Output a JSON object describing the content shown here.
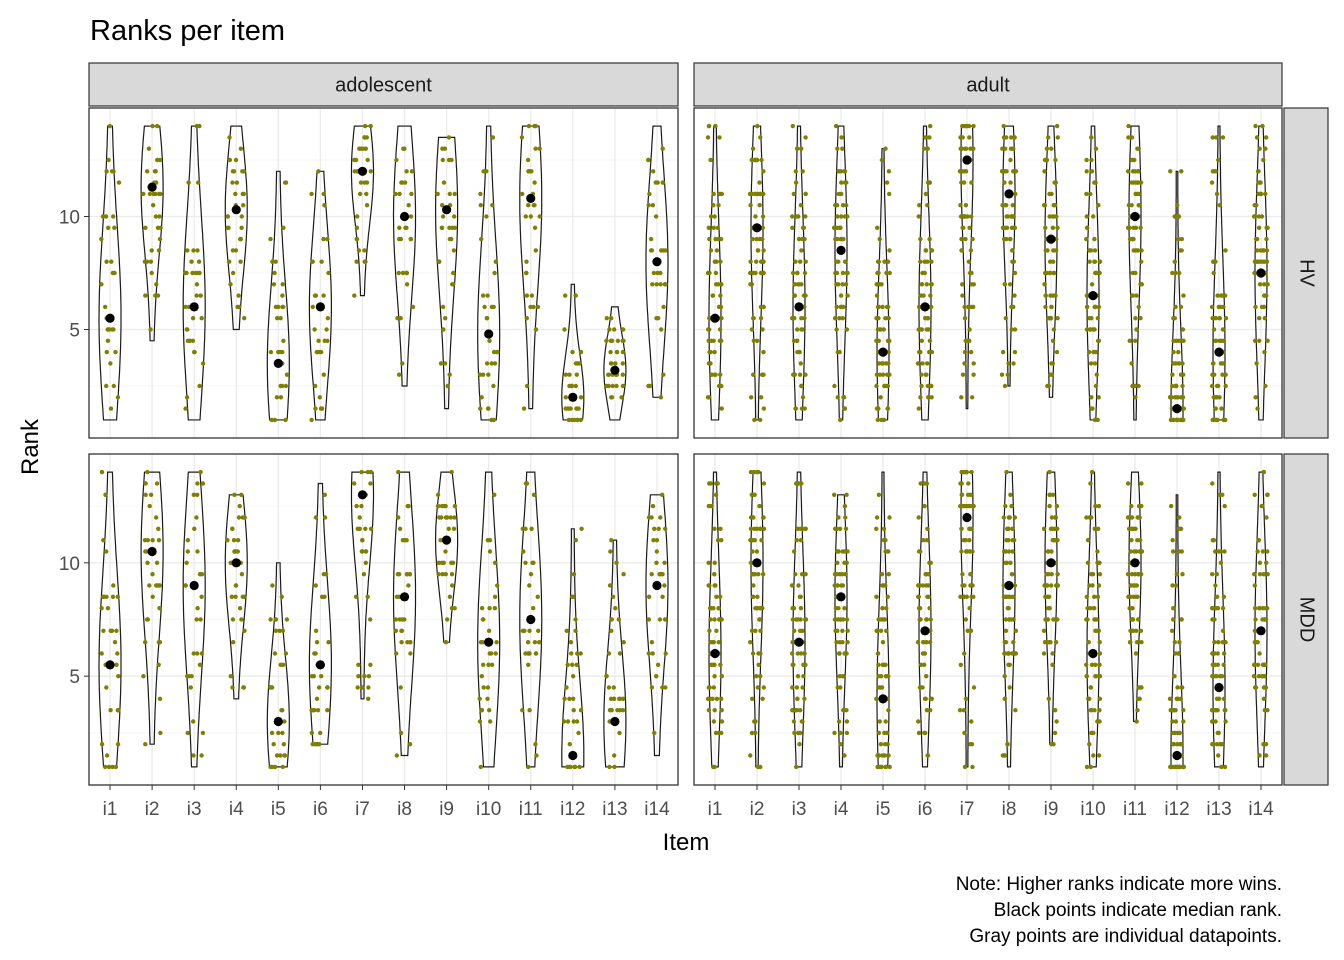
{
  "chart_data": {
    "type": "violin",
    "title": "Ranks per item",
    "xlabel": "Item",
    "ylabel": "Rank",
    "categories": [
      "i1",
      "i2",
      "i3",
      "i4",
      "i5",
      "i6",
      "i7",
      "i8",
      "i9",
      "i10",
      "i11",
      "i12",
      "i13",
      "i14"
    ],
    "ylim": [
      0.2,
      14.8
    ],
    "yticks": [
      5,
      10
    ],
    "grid": true,
    "columns": [
      "adolescent",
      "adult"
    ],
    "rows": [
      "HV",
      "MDD"
    ],
    "colors": {
      "points": "#808000",
      "median": "#000000",
      "violin": "#1a1a1a",
      "strip": "#d9d9d9",
      "grid": "#ebebeb",
      "panel_border": "#333333"
    },
    "caption": [
      "Note: Higher ranks indicate more wins.",
      "Black points indicate median rank.",
      "Gray points are individual datapoints."
    ],
    "panels": [
      {
        "column": "adolescent",
        "row": "HV",
        "items": [
          {
            "item": "i1",
            "median": 5.5,
            "range": [
              1,
              14
            ]
          },
          {
            "item": "i2",
            "median": 11.3,
            "range": [
              4.5,
              14
            ]
          },
          {
            "item": "i3",
            "median": 6,
            "range": [
              1,
              14
            ]
          },
          {
            "item": "i4",
            "median": 10.3,
            "range": [
              5,
              14
            ]
          },
          {
            "item": "i5",
            "median": 3.5,
            "range": [
              1,
              12
            ]
          },
          {
            "item": "i6",
            "median": 6,
            "range": [
              1,
              12
            ]
          },
          {
            "item": "i7",
            "median": 12,
            "range": [
              6.5,
              14
            ]
          },
          {
            "item": "i8",
            "median": 10,
            "range": [
              2.5,
              14
            ]
          },
          {
            "item": "i9",
            "median": 10.3,
            "range": [
              1.5,
              13.5
            ]
          },
          {
            "item": "i10",
            "median": 4.8,
            "range": [
              1,
              14
            ]
          },
          {
            "item": "i11",
            "median": 10.8,
            "range": [
              1.5,
              14
            ]
          },
          {
            "item": "i12",
            "median": 2,
            "range": [
              1,
              7
            ]
          },
          {
            "item": "i13",
            "median": 3.2,
            "range": [
              1,
              6
            ]
          },
          {
            "item": "i14",
            "median": 8,
            "range": [
              2,
              14
            ]
          }
        ]
      },
      {
        "column": "adult",
        "row": "HV",
        "items": [
          {
            "item": "i1",
            "median": 5.5,
            "range": [
              1,
              14
            ]
          },
          {
            "item": "i2",
            "median": 9.5,
            "range": [
              1,
              14
            ]
          },
          {
            "item": "i3",
            "median": 6,
            "range": [
              1,
              14
            ]
          },
          {
            "item": "i4",
            "median": 8.5,
            "range": [
              1,
              14
            ]
          },
          {
            "item": "i5",
            "median": 4,
            "range": [
              1,
              13
            ]
          },
          {
            "item": "i6",
            "median": 6,
            "range": [
              1,
              14
            ]
          },
          {
            "item": "i7",
            "median": 12.5,
            "range": [
              1.5,
              14
            ]
          },
          {
            "item": "i8",
            "median": 11,
            "range": [
              2.5,
              14
            ]
          },
          {
            "item": "i9",
            "median": 9,
            "range": [
              2,
              14
            ]
          },
          {
            "item": "i10",
            "median": 6.5,
            "range": [
              1,
              14
            ]
          },
          {
            "item": "i11",
            "median": 10,
            "range": [
              1,
              14
            ]
          },
          {
            "item": "i12",
            "median": 1.5,
            "range": [
              1,
              12
            ]
          },
          {
            "item": "i13",
            "median": 4,
            "range": [
              1,
              14
            ]
          },
          {
            "item": "i14",
            "median": 7.5,
            "range": [
              1,
              14
            ]
          }
        ]
      },
      {
        "column": "adolescent",
        "row": "MDD",
        "items": [
          {
            "item": "i1",
            "median": 5.5,
            "range": [
              1,
              14
            ]
          },
          {
            "item": "i2",
            "median": 10.5,
            "range": [
              2,
              14
            ]
          },
          {
            "item": "i3",
            "median": 9,
            "range": [
              1,
              14
            ]
          },
          {
            "item": "i4",
            "median": 10,
            "range": [
              4,
              13
            ]
          },
          {
            "item": "i5",
            "median": 3,
            "range": [
              1,
              10
            ]
          },
          {
            "item": "i6",
            "median": 5.5,
            "range": [
              2,
              13.5
            ]
          },
          {
            "item": "i7",
            "median": 13,
            "range": [
              4,
              14
            ]
          },
          {
            "item": "i8",
            "median": 8.5,
            "range": [
              1.5,
              14
            ]
          },
          {
            "item": "i9",
            "median": 11,
            "range": [
              6.5,
              14
            ]
          },
          {
            "item": "i10",
            "median": 6.5,
            "range": [
              1,
              14
            ]
          },
          {
            "item": "i11",
            "median": 7.5,
            "range": [
              1,
              14
            ]
          },
          {
            "item": "i12",
            "median": 1.5,
            "range": [
              1,
              11.5
            ]
          },
          {
            "item": "i13",
            "median": 3,
            "range": [
              1,
              11
            ]
          },
          {
            "item": "i14",
            "median": 9,
            "range": [
              1.5,
              13
            ]
          }
        ]
      },
      {
        "column": "adult",
        "row": "MDD",
        "items": [
          {
            "item": "i1",
            "median": 6,
            "range": [
              1,
              14
            ]
          },
          {
            "item": "i2",
            "median": 10,
            "range": [
              1,
              14
            ]
          },
          {
            "item": "i3",
            "median": 6.5,
            "range": [
              1,
              14
            ]
          },
          {
            "item": "i4",
            "median": 8.5,
            "range": [
              1,
              13
            ]
          },
          {
            "item": "i5",
            "median": 4,
            "range": [
              1,
              14
            ]
          },
          {
            "item": "i6",
            "median": 7,
            "range": [
              1,
              14
            ]
          },
          {
            "item": "i7",
            "median": 12,
            "range": [
              1,
              14
            ]
          },
          {
            "item": "i8",
            "median": 9,
            "range": [
              1,
              14
            ]
          },
          {
            "item": "i9",
            "median": 10,
            "range": [
              2,
              14
            ]
          },
          {
            "item": "i10",
            "median": 6,
            "range": [
              1,
              14
            ]
          },
          {
            "item": "i11",
            "median": 10,
            "range": [
              3,
              14
            ]
          },
          {
            "item": "i12",
            "median": 1.5,
            "range": [
              1,
              13
            ]
          },
          {
            "item": "i13",
            "median": 4.5,
            "range": [
              1,
              14
            ]
          },
          {
            "item": "i14",
            "median": 7,
            "range": [
              1,
              14
            ]
          }
        ]
      }
    ]
  }
}
